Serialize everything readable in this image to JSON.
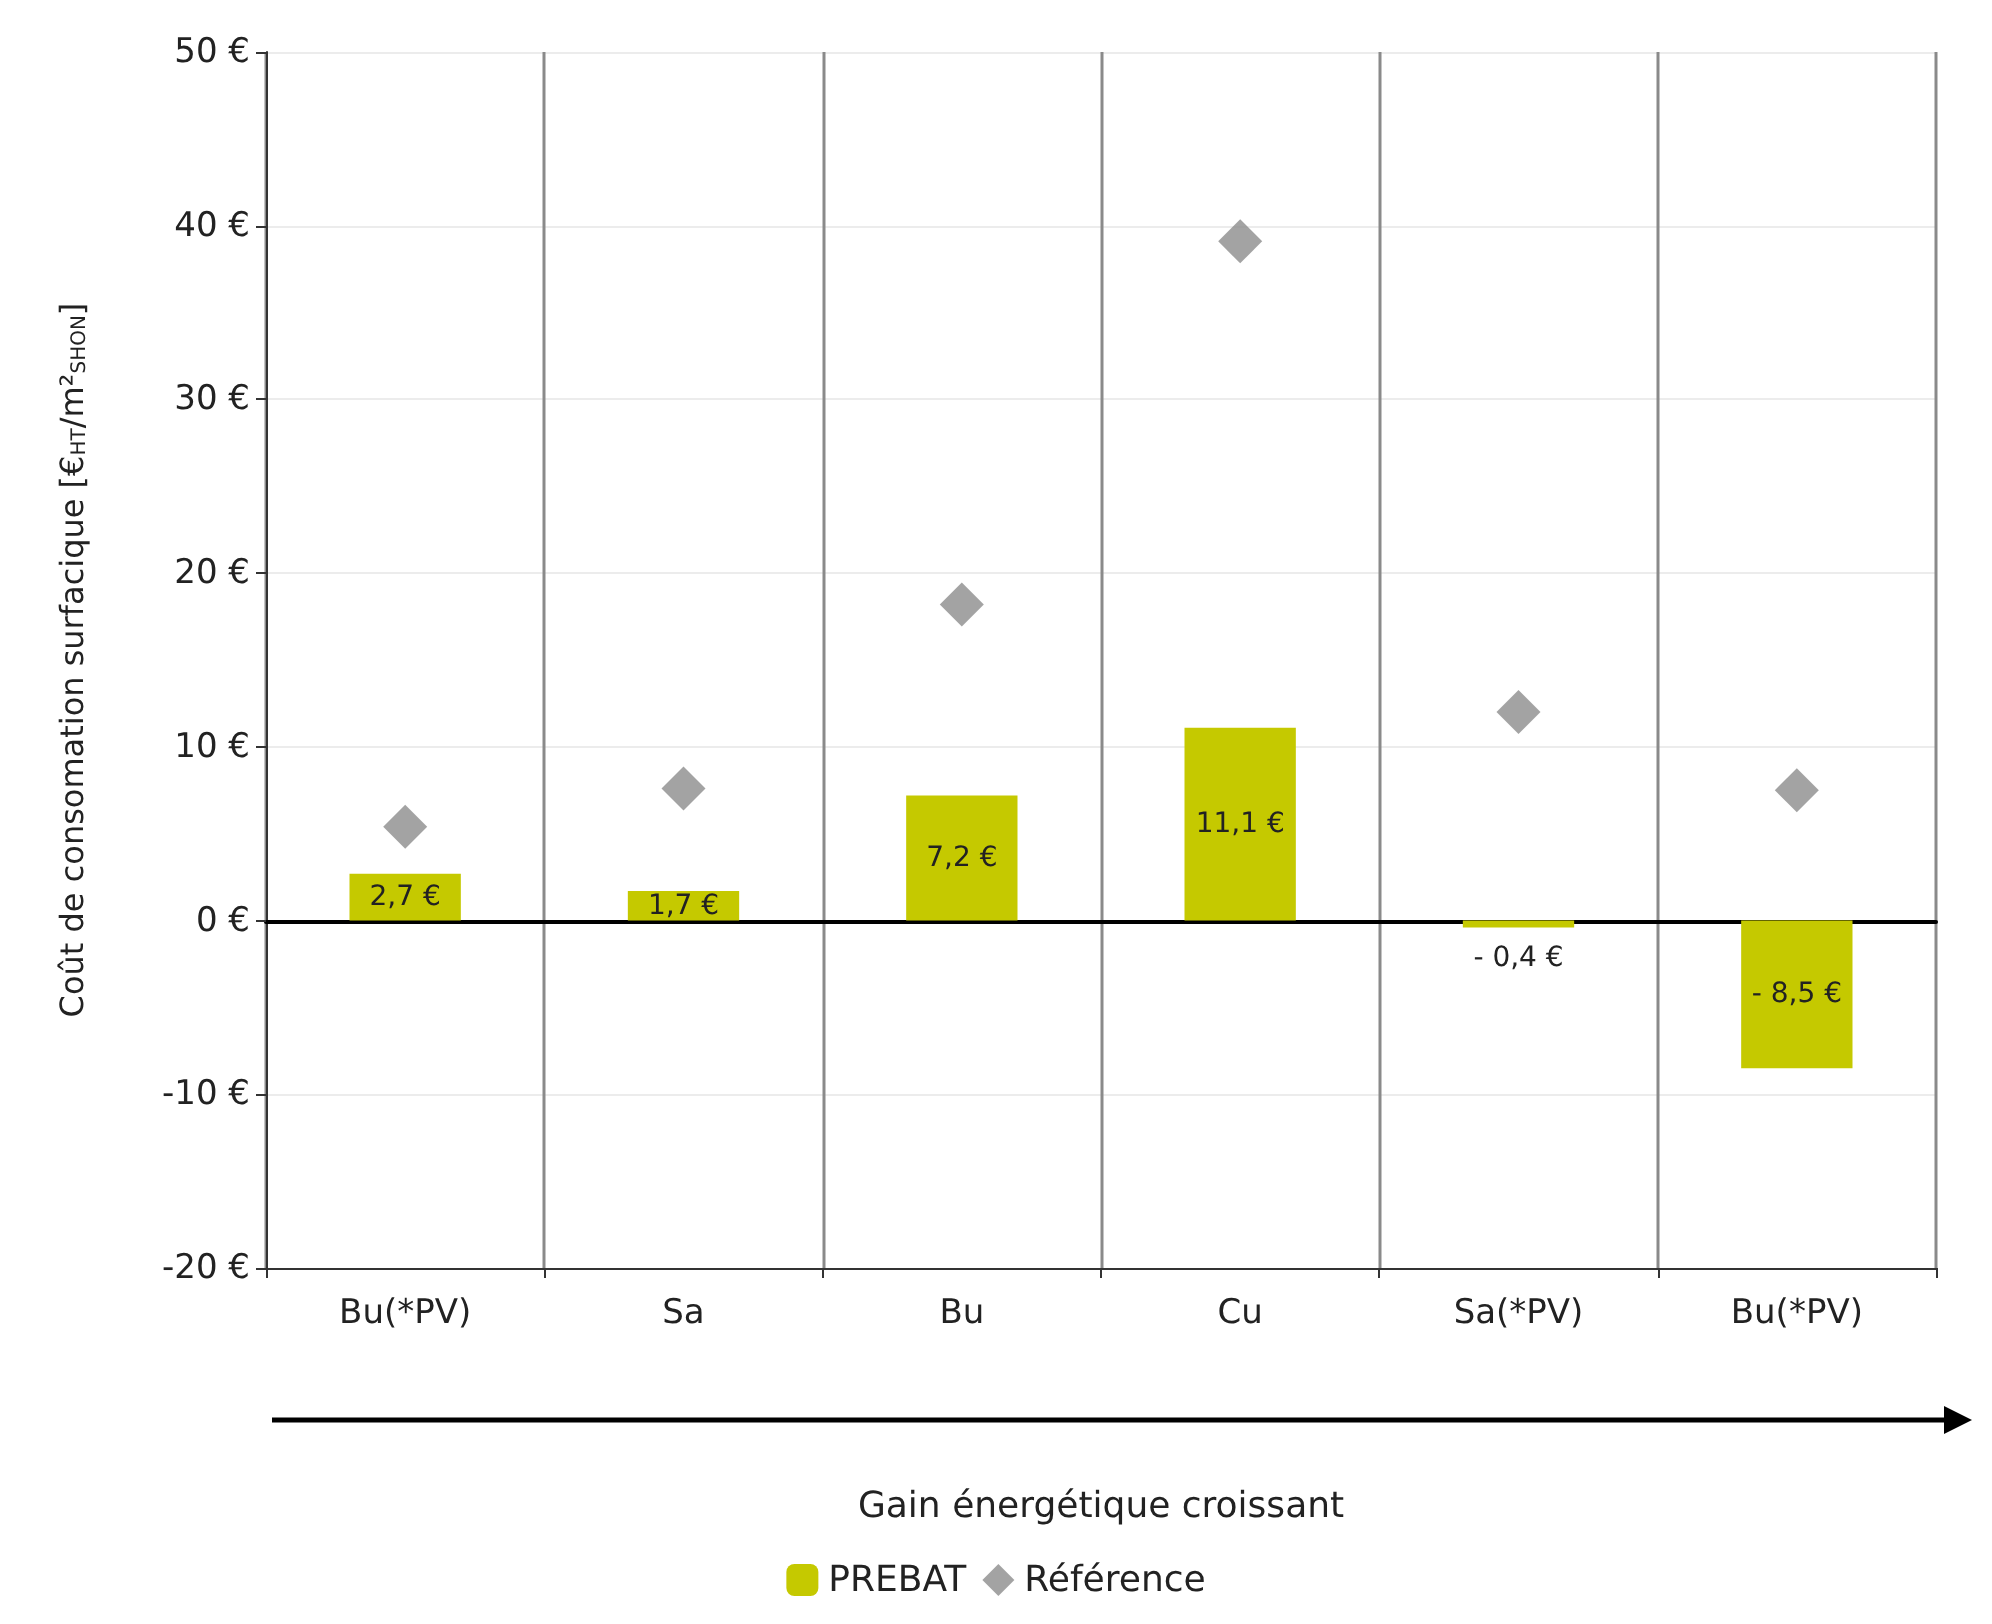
{
  "chart_data": {
    "type": "bar",
    "ylabel": "Coût de consomation surfacique [€$_{HT}$/m²$_{SHON}$]",
    "xlabel": "Gain énergétique croissant",
    "categories": [
      "Bu(*PV)",
      "Sa",
      "Bu",
      "Cu",
      "Sa(*PV)",
      "Bu(*PV)"
    ],
    "series": [
      {
        "name": "PREBAT",
        "color": "#c5c900",
        "values": [
          2.7,
          1.7,
          7.2,
          11.1,
          -0.4,
          -8.5
        ],
        "value_labels": [
          "2,7 €",
          "1,7 €",
          "7,2 €",
          "11,1 €",
          "- 0,4 €",
          "- 8,5 €"
        ]
      },
      {
        "name": "Référence",
        "type": "scatter",
        "color": "#8c8c8c",
        "values": [
          5.4,
          7.6,
          18.2,
          39.1,
          12.0,
          7.5
        ]
      }
    ],
    "marker": "diamond",
    "ylim": [
      -20,
      50
    ],
    "yticks": [
      {
        "value": -20,
        "label": "-20 €"
      },
      {
        "value": -10,
        "label": "-10 €"
      },
      {
        "value": 0,
        "label": "0 €"
      },
      {
        "value": 10,
        "label": "10 €"
      },
      {
        "value": 20,
        "label": "20 €"
      },
      {
        "value": 30,
        "label": "30 €"
      },
      {
        "value": 40,
        "label": "40 €"
      },
      {
        "value": 50,
        "label": "50 €"
      }
    ],
    "grid": true,
    "legend": "bottom"
  }
}
